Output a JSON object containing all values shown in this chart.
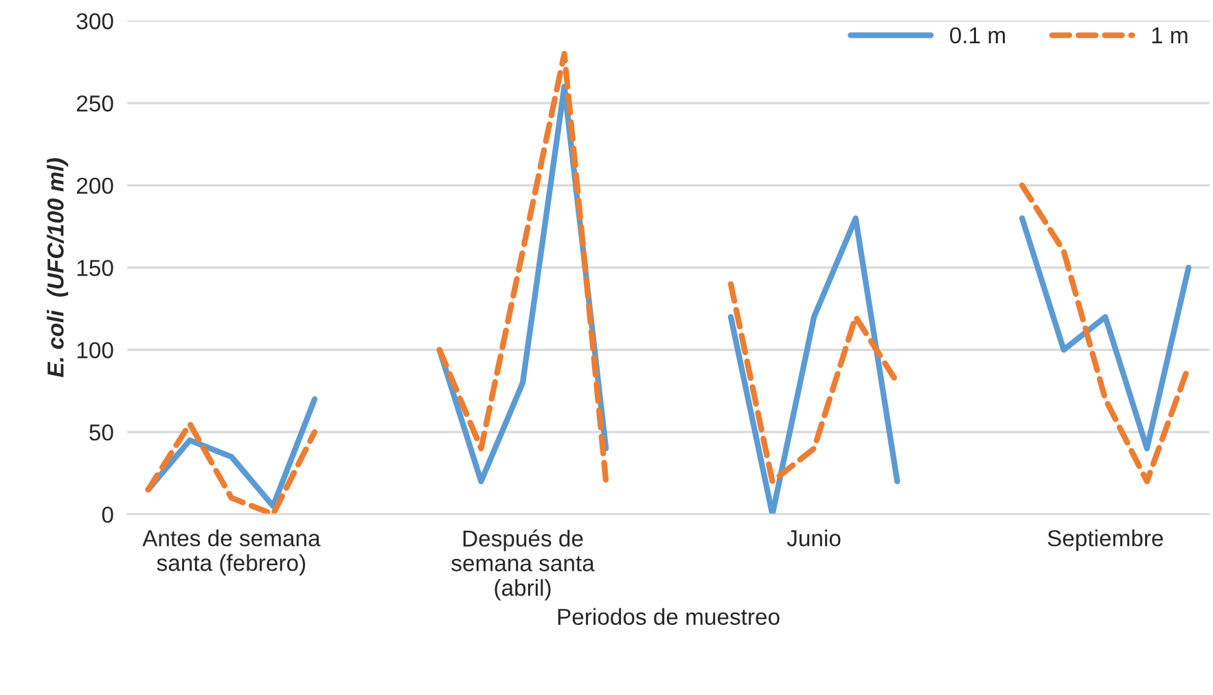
{
  "chart_data": {
    "type": "line",
    "xlabel": "Periodos de muestreo",
    "ylabel": "E. coli  (UFC/100 ml)",
    "categories": [
      null,
      null,
      "Antes de semana\nsanta (febrero)",
      null,
      null,
      null,
      null,
      null,
      null,
      "Después de\nsemana santa\n(abril)",
      null,
      null,
      null,
      null,
      null,
      null,
      "Junio",
      null,
      null,
      null,
      null,
      null,
      null,
      "Septiembre",
      null,
      null
    ],
    "series": [
      {
        "name": "0.1 m",
        "color": "#5b9bd5",
        "line_style": "solid",
        "values": [
          15,
          45,
          35,
          5,
          70,
          null,
          null,
          100,
          20,
          80,
          260,
          40,
          null,
          null,
          120,
          0,
          120,
          180,
          20,
          null,
          null,
          180,
          100,
          120,
          40,
          150
        ]
      },
      {
        "name": "1 m",
        "color": "#ed7d31",
        "line_style": "dashed",
        "values": [
          15,
          55,
          10,
          0,
          50,
          null,
          null,
          100,
          40,
          160,
          280,
          20,
          null,
          null,
          140,
          20,
          40,
          120,
          80,
          null,
          null,
          200,
          160,
          70,
          20,
          90
        ]
      }
    ],
    "ylim": [
      0,
      300
    ],
    "yticks": [
      0,
      50,
      100,
      150,
      200,
      250,
      300
    ],
    "grid": "y",
    "legend": "top right",
    "marker": "none"
  }
}
